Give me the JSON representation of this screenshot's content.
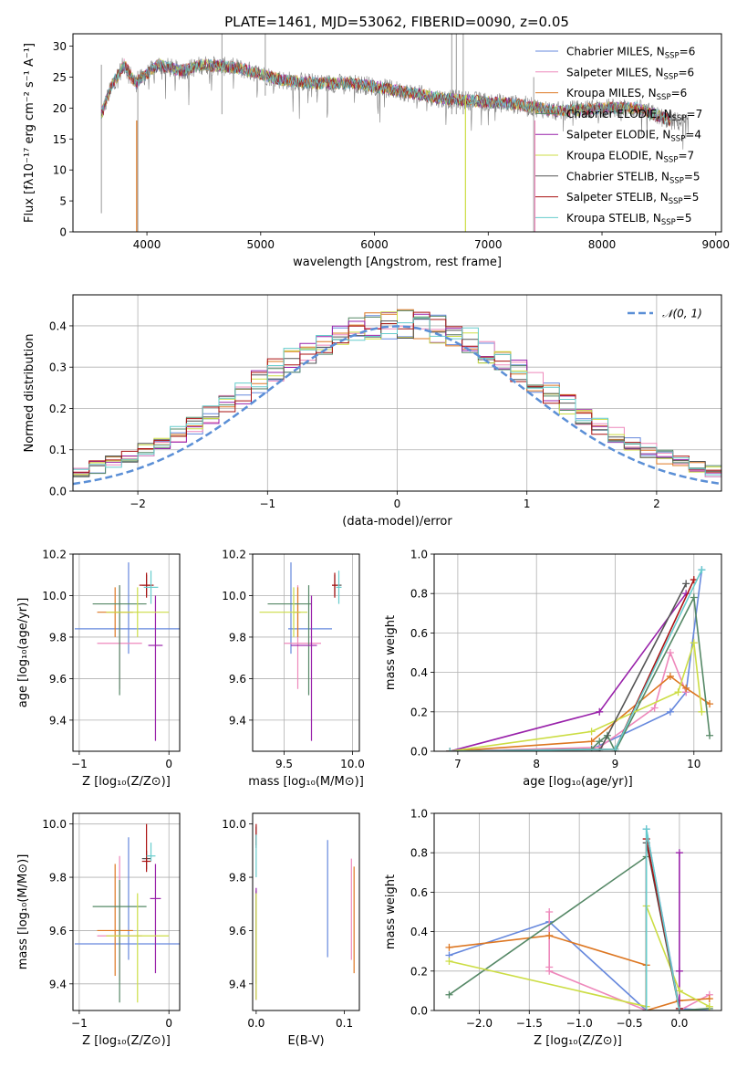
{
  "figure_title": "PLATE=1461, MJD=53062, FIBERID=0090, z=0.05",
  "models": [
    {
      "label": "Chabrier MILES, N",
      "sub": "SSP",
      "tail": "=6",
      "color": "#6688dd"
    },
    {
      "label": "Salpeter MILES, N",
      "sub": "SSP",
      "tail": "=6",
      "color": "#ee88bb"
    },
    {
      "label": "Kroupa MILES, N",
      "sub": "SSP",
      "tail": "=6",
      "color": "#dd7722"
    },
    {
      "label": "Chabrier ELODIE, N",
      "sub": "SSP",
      "tail": "=7",
      "color": "#558866"
    },
    {
      "label": "Salpeter ELODIE, N",
      "sub": "SSP",
      "tail": "=4",
      "color": "#9922aa"
    },
    {
      "label": "Kroupa ELODIE, N",
      "sub": "SSP",
      "tail": "=7",
      "color": "#ccdd44"
    },
    {
      "label": "Chabrier STELIB, N",
      "sub": "SSP",
      "tail": "=5",
      "color": "#555555"
    },
    {
      "label": "Salpeter STELIB, N",
      "sub": "SSP",
      "tail": "=5",
      "color": "#aa1111"
    },
    {
      "label": "Kroupa STELIB, N",
      "sub": "SSP",
      "tail": "=5",
      "color": "#66cccc"
    }
  ],
  "chart_data": [
    {
      "type": "line",
      "id": "spectrum",
      "xlabel": "wavelength [Angstrom, rest frame]",
      "ylabel": "Flux [fλ10⁻¹⁷ erg cm⁻² s⁻¹ A⁻¹]",
      "xlim": [
        3350,
        9050
      ],
      "ylim": [
        0,
        32
      ],
      "xticks": [
        4000,
        5000,
        6000,
        7000,
        8000,
        9000
      ],
      "yticks": [
        0,
        5,
        10,
        15,
        20,
        25,
        30
      ],
      "legend": "right",
      "continuum": [
        [
          3600,
          19
        ],
        [
          3700,
          24
        ],
        [
          3800,
          27
        ],
        [
          3900,
          24
        ],
        [
          4000,
          25.5
        ],
        [
          4100,
          27
        ],
        [
          4300,
          26
        ],
        [
          4500,
          27
        ],
        [
          4800,
          26.5
        ],
        [
          5000,
          25.5
        ],
        [
          5200,
          24.5
        ],
        [
          5500,
          24
        ],
        [
          5800,
          24
        ],
        [
          6000,
          23.5
        ],
        [
          6300,
          22.5
        ],
        [
          6600,
          21.5
        ],
        [
          7000,
          21
        ],
        [
          7300,
          20.5
        ],
        [
          7600,
          19.5
        ],
        [
          8000,
          20
        ],
        [
          8300,
          20
        ],
        [
          8600,
          18
        ],
        [
          8760,
          17.5
        ]
      ],
      "model_end": 8600,
      "data_color": "#808080",
      "spikes": [
        [
          3600,
          3,
          27
        ],
        [
          3920,
          0,
          26
        ],
        [
          4660,
          19,
          32
        ],
        [
          5040,
          22,
          32
        ],
        [
          6680,
          19,
          32
        ],
        [
          6720,
          19,
          32
        ],
        [
          6780,
          19,
          32
        ],
        [
          7400,
          0,
          25
        ]
      ],
      "dips": [
        [
          3910,
          0,
          18,
          "#dd7722"
        ],
        [
          6800,
          0,
          22,
          "#ccdd44"
        ],
        [
          7410,
          0,
          18,
          "#ee88bb"
        ]
      ]
    },
    {
      "type": "line",
      "id": "residuals",
      "xlabel": "(data-model)/error",
      "ylabel": "Normed distribution",
      "xlim": [
        -2.5,
        2.5
      ],
      "ylim": [
        0,
        0.475
      ],
      "xticks": [
        -2,
        -1,
        0,
        1,
        2
      ],
      "yticks": [
        0.0,
        0.1,
        0.2,
        0.3,
        0.4
      ],
      "grid": true,
      "legend": "top-right",
      "reference": {
        "name": "𝒩(0, 1)",
        "color": "#5b8fd6"
      },
      "bins": 40
    },
    {
      "type": "scatter",
      "id": "age_vs_Z",
      "xlabel": "Z [log₁₀(Z/Z⊙)]",
      "ylabel": "age  [log₁₀(age/yr)]",
      "xlim": [
        -1.07,
        0.12
      ],
      "ylim": [
        9.25,
        10.2
      ],
      "xticks": [
        -1,
        0
      ],
      "yticks": [
        9.4,
        9.6,
        9.8,
        10.0,
        10.2
      ],
      "grid": true,
      "points": [
        [
          -0.45,
          9.84,
          0.6,
          0.6,
          0.12,
          0.32
        ],
        [
          -0.55,
          9.77,
          0.25,
          0.25,
          0.22,
          0.28
        ],
        [
          -0.6,
          9.92,
          0.2,
          0.2,
          0.12,
          0.12
        ],
        [
          -0.55,
          9.96,
          0.3,
          0.3,
          0.44,
          0.09
        ],
        [
          -0.15,
          9.76,
          0.08,
          0.08,
          0.46,
          0.24
        ],
        [
          -0.35,
          9.92,
          0.35,
          0.35,
          0.12,
          0.12
        ],
        [
          -0.25,
          10.05,
          0.05,
          0.05,
          0.05,
          0.05
        ],
        [
          -0.25,
          10.05,
          0.08,
          0.08,
          0.06,
          0.06
        ],
        [
          -0.2,
          10.04,
          0.08,
          0.08,
          0.08,
          0.08
        ]
      ]
    },
    {
      "type": "scatter",
      "id": "age_vs_mass",
      "xlabel": "mass [log₁₀(M/M⊙)]",
      "ylabel": "",
      "xlim": [
        9.27,
        10.05
      ],
      "ylim": [
        9.25,
        10.2
      ],
      "xticks": [
        9.5,
        10.0
      ],
      "yticks": [
        9.4,
        9.6,
        9.8,
        10.0,
        10.2
      ],
      "grid": true,
      "points": [
        [
          9.55,
          9.84,
          0.02,
          0.3,
          0.12,
          0.32
        ],
        [
          9.6,
          9.77,
          0.1,
          0.17,
          0.22,
          0.28
        ],
        [
          9.6,
          9.92,
          0.03,
          0.02,
          0.12,
          0.12
        ],
        [
          9.68,
          9.96,
          0.3,
          0.02,
          0.44,
          0.09
        ],
        [
          9.7,
          9.76,
          0.15,
          0.04,
          0.46,
          0.24
        ],
        [
          9.57,
          9.92,
          0.25,
          0.1,
          0.12,
          0.12
        ],
        [
          9.87,
          10.05,
          0.02,
          0.05,
          0.05,
          0.05
        ],
        [
          9.87,
          10.05,
          0.02,
          0.02,
          0.06,
          0.06
        ],
        [
          9.9,
          10.04,
          0.02,
          0.02,
          0.08,
          0.08
        ]
      ]
    },
    {
      "type": "line",
      "id": "weight_vs_age",
      "xlabel": "age  [log₁₀(age/yr)]",
      "ylabel": "mass weight",
      "xlim": [
        6.7,
        10.35
      ],
      "ylim": [
        0,
        1.0
      ],
      "xticks": [
        7,
        8,
        9,
        10
      ],
      "yticks": [
        0.0,
        0.2,
        0.4,
        0.6,
        0.8,
        1.0
      ],
      "grid": true,
      "series": [
        {
          "x": [
            6.9,
            8.7,
            9.7,
            9.9,
            10.1
          ],
          "y": [
            0.0,
            0.01,
            0.2,
            0.3,
            0.92
          ]
        },
        {
          "x": [
            6.9,
            8.8,
            9.5,
            9.7,
            9.9
          ],
          "y": [
            0.0,
            0.02,
            0.22,
            0.5,
            0.3
          ]
        },
        {
          "x": [
            6.9,
            8.7,
            9.7,
            9.9,
            10.2
          ],
          "y": [
            0.0,
            0.05,
            0.38,
            0.32,
            0.24
          ]
        },
        {
          "x": [
            6.9,
            8.7,
            8.8,
            8.9,
            9.0,
            10.0,
            10.2
          ],
          "y": [
            0.0,
            0.01,
            0.05,
            0.08,
            0.0,
            0.78,
            0.08
          ]
        },
        {
          "x": [
            6.9,
            8.8,
            9.9
          ],
          "y": [
            0.0,
            0.2,
            0.8
          ]
        },
        {
          "x": [
            6.9,
            8.7,
            9.8,
            10.0,
            10.1
          ],
          "y": [
            0.0,
            0.1,
            0.3,
            0.55,
            0.2
          ]
        },
        {
          "x": [
            6.9,
            8.8,
            9.9
          ],
          "y": [
            0.0,
            0.0,
            0.85
          ]
        },
        {
          "x": [
            6.9,
            9.0,
            10.0
          ],
          "y": [
            0.0,
            0.01,
            0.87
          ]
        },
        {
          "x": [
            6.9,
            9.0,
            10.1
          ],
          "y": [
            0.0,
            0.01,
            0.92
          ]
        }
      ]
    },
    {
      "type": "scatter",
      "id": "mass_vs_Z",
      "xlabel": "Z [log₁₀(Z/Z⊙)]",
      "ylabel": "mass [log₁₀(M/M⊙)]",
      "xlim": [
        -1.07,
        0.12
      ],
      "ylim": [
        9.3,
        10.04
      ],
      "xticks": [
        -1,
        0
      ],
      "yticks": [
        9.4,
        9.6,
        9.8,
        10.0
      ],
      "grid": true,
      "points": [
        [
          -0.45,
          9.55,
          0.6,
          0.6,
          0.06,
          0.4
        ],
        [
          -0.55,
          9.58,
          0.25,
          0.25,
          0.17,
          0.3
        ],
        [
          -0.6,
          9.6,
          0.2,
          0.2,
          0.17,
          0.25
        ],
        [
          -0.55,
          9.69,
          0.3,
          0.3,
          0.36,
          0.1
        ],
        [
          -0.15,
          9.72,
          0.06,
          0.06,
          0.28,
          0.13
        ],
        [
          -0.35,
          9.58,
          0.35,
          0.35,
          0.25,
          0.16
        ],
        [
          -0.25,
          9.87,
          0.05,
          0.05,
          0.04,
          0.03
        ],
        [
          -0.25,
          9.86,
          0.05,
          0.05,
          0.04,
          0.14
        ],
        [
          -0.2,
          9.88,
          0.05,
          0.05,
          0.02,
          0.05
        ]
      ]
    },
    {
      "type": "scatter",
      "id": "mass_vs_ebv",
      "xlabel": "E(B-V)",
      "ylabel": "",
      "xlim": [
        -0.004,
        0.117
      ],
      "ylim": [
        9.3,
        10.04
      ],
      "xticks": [
        0.0,
        0.1
      ],
      "yticks": [
        9.4,
        9.6,
        9.8,
        10.0
      ],
      "grid": false,
      "points": [
        [
          0.081,
          9.72,
          0,
          0,
          0.22,
          0.22
        ],
        [
          0.108,
          9.69,
          0,
          0,
          0.2,
          0.18
        ],
        [
          0.111,
          9.64,
          0,
          0,
          0.2,
          0.2
        ],
        [
          0.0,
          9.6,
          0,
          0,
          0.2,
          0.15
        ],
        [
          0.0,
          9.56,
          0,
          0,
          0.22,
          0.2
        ],
        [
          0.0,
          9.54,
          0,
          0,
          0.2,
          0.2
        ],
        [
          0.0,
          9.95,
          0,
          0,
          0.04,
          0.04
        ],
        [
          0.0,
          9.96,
          0,
          0,
          0.04,
          0.04
        ],
        [
          0.0,
          9.88,
          0,
          0,
          0.08,
          0.08
        ]
      ]
    },
    {
      "type": "line",
      "id": "weight_vs_Z",
      "xlabel": "Z [log₁₀(Z/Z⊙)]",
      "ylabel": "mass weight",
      "xlim": [
        -2.45,
        0.42
      ],
      "ylim": [
        0,
        1.0
      ],
      "xticks": [
        -2.0,
        -1.5,
        -1.0,
        -0.5,
        0.0
      ],
      "yticks": [
        0.0,
        0.2,
        0.4,
        0.6,
        0.8,
        1.0
      ],
      "grid": true,
      "series": [
        {
          "x": [
            -2.3,
            -1.3,
            -0.33,
            -0.33,
            0.0,
            0.3
          ],
          "y": [
            0.28,
            0.45,
            0.0,
            0.92,
            0.01,
            0.0
          ]
        },
        {
          "x": [
            -1.3,
            -1.3,
            -1.3,
            -0.33,
            0.0,
            0.3
          ],
          "y": [
            0.5,
            0.22,
            0.2,
            0.0,
            0.0,
            0.08
          ]
        },
        {
          "x": [
            -2.3,
            -1.3,
            -0.33,
            -0.33,
            0.0,
            0.3
          ],
          "y": [
            0.32,
            0.38,
            0.23,
            0.0,
            0.05,
            0.06
          ]
        },
        {
          "x": [
            -2.3,
            -0.33,
            -0.33,
            0.0,
            0.3
          ],
          "y": [
            0.08,
            0.78,
            0.0,
            0.0,
            0.01
          ]
        },
        {
          "x": [
            0.0,
            0.0,
            0.0
          ],
          "y": [
            0.8,
            0.2,
            0.0
          ]
        },
        {
          "x": [
            -2.3,
            -0.33,
            -0.33,
            0.0,
            0.3
          ],
          "y": [
            0.25,
            0.02,
            0.53,
            0.1,
            0.02
          ]
        },
        {
          "x": [
            -0.33,
            -0.33,
            0.0
          ],
          "y": [
            0.0,
            0.85,
            0.0
          ]
        },
        {
          "x": [
            -0.33,
            -0.33,
            0.0
          ],
          "y": [
            0.0,
            0.87,
            0.01
          ]
        },
        {
          "x": [
            -0.33,
            -0.33,
            0.0
          ],
          "y": [
            0.0,
            0.92,
            0.0
          ]
        }
      ]
    }
  ]
}
